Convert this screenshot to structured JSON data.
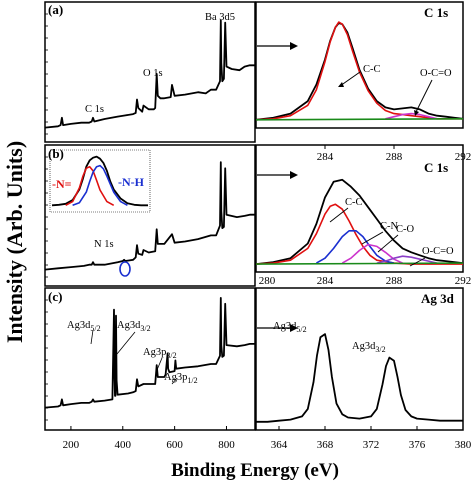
{
  "figure": {
    "ylabel": "Intensity (Arb. Units)",
    "xlabel": "Binding Energy (eV)"
  },
  "chart_data": [
    {
      "id": "a-survey",
      "panel_label": "(a)",
      "type": "line",
      "xlim": [
        100,
        910
      ],
      "ylim": [
        0,
        1
      ],
      "annotations": [
        {
          "text": "Ba 3d5",
          "x": 780,
          "y": 0.93
        },
        {
          "text": "O 1s",
          "x": 531,
          "y": 0.45
        },
        {
          "text": "C 1s",
          "x": 285,
          "y": 0.1
        }
      ],
      "series": [
        {
          "x": [
            100,
            150,
            160,
            165,
            170,
            200,
            240,
            270,
            280,
            285,
            290,
            330,
            380,
            410,
            440,
            450,
            455,
            460,
            475,
            480,
            500,
            520,
            525,
            531,
            535,
            545,
            560,
            585,
            590,
            600,
            640,
            690,
            720,
            740,
            760,
            775,
            778,
            780,
            784,
            790,
            795,
            800,
            820,
            850,
            870,
            890,
            910
          ],
          "y": [
            0.02,
            0.03,
            0.04,
            0.1,
            0.04,
            0.05,
            0.06,
            0.06,
            0.07,
            0.1,
            0.07,
            0.09,
            0.11,
            0.12,
            0.13,
            0.14,
            0.25,
            0.18,
            0.15,
            0.2,
            0.17,
            0.17,
            0.18,
            0.46,
            0.28,
            0.26,
            0.26,
            0.27,
            0.37,
            0.28,
            0.29,
            0.31,
            0.3,
            0.33,
            0.33,
            0.4,
            0.9,
            0.55,
            0.4,
            0.42,
            0.88,
            0.52,
            0.5,
            0.49,
            0.52,
            0.53,
            0.53
          ]
        }
      ]
    },
    {
      "id": "a-c1s",
      "panel_label": "C 1s",
      "type": "line",
      "xlim": [
        280,
        292
      ],
      "ylim": [
        0,
        1
      ],
      "series": [
        {
          "name": "data",
          "color": "#000000",
          "x": [
            280,
            281,
            282,
            283,
            283.5,
            284,
            284.3,
            284.6,
            284.8,
            285,
            285.3,
            285.6,
            286,
            286.5,
            287,
            287.5,
            288,
            288.5,
            289,
            289.5,
            290,
            290.5,
            291,
            291.5,
            292
          ],
          "y": [
            0.04,
            0.06,
            0.1,
            0.22,
            0.38,
            0.62,
            0.8,
            0.93,
            0.97,
            0.96,
            0.88,
            0.73,
            0.52,
            0.34,
            0.22,
            0.16,
            0.14,
            0.15,
            0.16,
            0.14,
            0.1,
            0.08,
            0.07,
            0.06,
            0.05
          ]
        },
        {
          "name": "fit",
          "color": "#e01010",
          "x": [
            280,
            281,
            282,
            283,
            283.5,
            284,
            284.3,
            284.6,
            284.8,
            285,
            285.3,
            285.6,
            286,
            286.5,
            287,
            287.5,
            288,
            288.5,
            289,
            289.5,
            290,
            290.5,
            291,
            291.5,
            292
          ],
          "y": [
            0.04,
            0.05,
            0.08,
            0.18,
            0.33,
            0.6,
            0.79,
            0.93,
            0.98,
            0.96,
            0.86,
            0.7,
            0.5,
            0.32,
            0.2,
            0.13,
            0.1,
            0.09,
            0.08,
            0.07,
            0.06,
            0.05,
            0.05,
            0.05,
            0.05
          ]
        },
        {
          "name": "peak2",
          "color": "#cc33cc",
          "x": [
            287.5,
            288,
            288.5,
            289,
            289.5,
            290,
            290.5
          ],
          "y": [
            0.05,
            0.07,
            0.09,
            0.1,
            0.09,
            0.07,
            0.05
          ]
        },
        {
          "name": "baseline",
          "color": "#1a8a1a",
          "x": [
            280,
            292
          ],
          "y": [
            0.04,
            0.05
          ]
        }
      ],
      "annotations": [
        {
          "text": "C-C",
          "x": 286.1,
          "y": 0.62
        },
        {
          "text": "O-C=O",
          "x": 289.7,
          "y": 0.42
        }
      ]
    },
    {
      "id": "b-survey",
      "panel_label": "(b)",
      "type": "line",
      "xlim": [
        100,
        910
      ],
      "ylim": [
        0,
        1
      ],
      "annotations": [
        {
          "text": "N 1s",
          "x": 395,
          "y": 0.24
        }
      ],
      "series": [
        {
          "x": [
            100,
            150,
            200,
            250,
            270,
            280,
            285,
            290,
            330,
            380,
            400,
            405,
            410,
            440,
            450,
            455,
            460,
            475,
            480,
            500,
            525,
            531,
            535,
            560,
            590,
            600,
            640,
            690,
            740,
            760,
            775,
            778,
            780,
            784,
            790,
            795,
            800,
            840,
            870,
            890,
            910
          ],
          "y": [
            0.02,
            0.03,
            0.04,
            0.05,
            0.06,
            0.06,
            0.08,
            0.06,
            0.06,
            0.08,
            0.09,
            0.1,
            0.09,
            0.1,
            0.12,
            0.22,
            0.15,
            0.14,
            0.18,
            0.16,
            0.17,
            0.35,
            0.23,
            0.23,
            0.31,
            0.24,
            0.25,
            0.27,
            0.3,
            0.3,
            0.38,
            0.9,
            0.5,
            0.36,
            0.37,
            0.85,
            0.47,
            0.45,
            0.46,
            0.47,
            0.47
          ]
        }
      ]
    },
    {
      "id": "b-n1s-inset",
      "type": "line",
      "labels": [
        {
          "text": "-N=",
          "color": "#e01010"
        },
        {
          "text": "-N-H",
          "color": "#1a2fd0"
        }
      ],
      "xlim": [
        393,
        407
      ],
      "ylim": [
        0,
        1
      ],
      "series": [
        {
          "name": "data",
          "color": "#000000",
          "x": [
            393,
            394,
            395,
            396,
            397,
            397.5,
            398,
            398.5,
            399,
            399.5,
            400,
            400.5,
            401,
            401.5,
            402,
            403,
            404,
            405,
            406,
            407
          ],
          "y": [
            0.05,
            0.06,
            0.08,
            0.15,
            0.35,
            0.55,
            0.78,
            0.9,
            0.95,
            0.97,
            0.93,
            0.85,
            0.7,
            0.5,
            0.35,
            0.18,
            0.09,
            0.06,
            0.05,
            0.05
          ]
        },
        {
          "name": "-N=",
          "color": "#e01010",
          "x": [
            395,
            396,
            397,
            397.5,
            398,
            398.5,
            399,
            399.5,
            400,
            401,
            402
          ],
          "y": [
            0.05,
            0.12,
            0.38,
            0.6,
            0.75,
            0.78,
            0.7,
            0.52,
            0.34,
            0.12,
            0.05
          ]
        },
        {
          "name": "-N-H",
          "color": "#1a2fd0",
          "x": [
            396,
            397,
            398,
            398.5,
            399,
            399.5,
            400,
            400.5,
            401,
            401.5,
            402,
            403,
            404
          ],
          "y": [
            0.05,
            0.1,
            0.3,
            0.5,
            0.68,
            0.78,
            0.8,
            0.74,
            0.6,
            0.45,
            0.3,
            0.12,
            0.05
          ]
        }
      ]
    },
    {
      "id": "b-c1s",
      "panel_label": "C 1s",
      "type": "line",
      "xlim": [
        280,
        292
      ],
      "ylim": [
        0,
        1
      ],
      "x_ticks": [
        284,
        288,
        292
      ],
      "series": [
        {
          "name": "data",
          "color": "#000000",
          "x": [
            280,
            281,
            282,
            283,
            283.5,
            284,
            284.5,
            285,
            285.5,
            286,
            286.5,
            287,
            287.5,
            288,
            288.5,
            289,
            289.5,
            290,
            290.5,
            291,
            291.5,
            292
          ],
          "y": [
            0.04,
            0.06,
            0.1,
            0.25,
            0.45,
            0.72,
            0.88,
            0.9,
            0.83,
            0.74,
            0.62,
            0.5,
            0.38,
            0.28,
            0.2,
            0.16,
            0.13,
            0.1,
            0.08,
            0.07,
            0.06,
            0.05
          ]
        },
        {
          "name": "fit",
          "color": "#e01010",
          "x": [
            280,
            281,
            282,
            283,
            283.5,
            284,
            284.3,
            284.6,
            285,
            285.4,
            285.8,
            286.2,
            286.6,
            287,
            288,
            289,
            290,
            291,
            292
          ],
          "y": [
            0.04,
            0.05,
            0.08,
            0.2,
            0.35,
            0.55,
            0.63,
            0.65,
            0.6,
            0.48,
            0.34,
            0.22,
            0.13,
            0.08,
            0.05,
            0.04,
            0.04,
            0.04,
            0.04
          ]
        },
        {
          "name": "C-N",
          "color": "#1a2fd0",
          "x": [
            283.5,
            284,
            284.5,
            285,
            285.4,
            285.8,
            286.2,
            286.6,
            287,
            287.5,
            288
          ],
          "y": [
            0.05,
            0.1,
            0.2,
            0.32,
            0.38,
            0.38,
            0.32,
            0.22,
            0.13,
            0.07,
            0.05
          ]
        },
        {
          "name": "C-O",
          "color": "#cc33cc",
          "x": [
            285,
            285.5,
            286,
            286.5,
            287,
            287.5,
            288,
            288.5
          ],
          "y": [
            0.05,
            0.1,
            0.18,
            0.24,
            0.22,
            0.16,
            0.09,
            0.05
          ]
        },
        {
          "name": "O-C=O",
          "color": "#8a3fc7",
          "x": [
            287,
            287.5,
            288,
            288.5,
            289,
            289.5,
            290,
            290.5
          ],
          "y": [
            0.05,
            0.07,
            0.1,
            0.12,
            0.11,
            0.09,
            0.07,
            0.05
          ]
        },
        {
          "name": "baseline",
          "color": "#1a8a1a",
          "x": [
            280,
            292
          ],
          "y": [
            0.04,
            0.05
          ]
        }
      ],
      "annotations": [
        {
          "text": "C-C",
          "x": 285.8,
          "y": 1.2
        },
        {
          "text": "C-N",
          "x": 286.8,
          "y": 0.9
        },
        {
          "text": "C-O",
          "x": 288.3,
          "y": 0.68
        },
        {
          "text": "O-C=O",
          "x": 289.8,
          "y": 0.48
        }
      ]
    },
    {
      "id": "c-survey",
      "panel_label": "(c)",
      "type": "line",
      "xlim": [
        100,
        910
      ],
      "ylim": [
        0,
        1
      ],
      "x_ticks": [
        200,
        400,
        600,
        800
      ],
      "annotations": [
        {
          "text": "Ag3d",
          "sub": "5/2"
        },
        {
          "text": "Ag3d",
          "sub": "3/2"
        },
        {
          "text": "Ag3p",
          "sub": "3/2"
        },
        {
          "text": "Ag3p",
          "sub": "1/2"
        }
      ],
      "series": [
        {
          "x": [
            100,
            150,
            160,
            165,
            170,
            200,
            240,
            270,
            280,
            285,
            290,
            330,
            360,
            366,
            368,
            370,
            372,
            374,
            376,
            380,
            420,
            440,
            450,
            455,
            460,
            480,
            500,
            525,
            531,
            535,
            560,
            565,
            573,
            575,
            580,
            600,
            603,
            606,
            640,
            690,
            740,
            760,
            775,
            778,
            780,
            784,
            790,
            795,
            800,
            840,
            870,
            890,
            910
          ],
          "y": [
            0.02,
            0.03,
            0.04,
            0.09,
            0.04,
            0.05,
            0.06,
            0.06,
            0.07,
            0.09,
            0.07,
            0.08,
            0.09,
            0.85,
            0.3,
            0.12,
            0.12,
            0.8,
            0.25,
            0.13,
            0.14,
            0.15,
            0.16,
            0.26,
            0.2,
            0.22,
            0.22,
            0.22,
            0.38,
            0.28,
            0.28,
            0.3,
            0.48,
            0.35,
            0.32,
            0.33,
            0.42,
            0.35,
            0.36,
            0.37,
            0.39,
            0.39,
            0.46,
            0.95,
            0.55,
            0.45,
            0.46,
            0.9,
            0.55,
            0.54,
            0.55,
            0.56,
            0.56
          ]
        }
      ]
    },
    {
      "id": "c-ag3d",
      "panel_label": "Ag 3d",
      "type": "line",
      "xlim": [
        362,
        380
      ],
      "ylim": [
        0,
        1
      ],
      "x_ticks": [
        364,
        368,
        372,
        376,
        380
      ],
      "annotations": [
        {
          "text": "Ag3d",
          "sub": "5/2",
          "x": 368,
          "y": 0.95
        },
        {
          "text": "Ag3d",
          "sub": "3/2",
          "x": 374,
          "y": 0.75
        }
      ],
      "series": [
        {
          "x": [
            362,
            363,
            364,
            365,
            366,
            366.5,
            367,
            367.3,
            367.6,
            368,
            368.3,
            368.6,
            369,
            369.5,
            370,
            371,
            372,
            372.5,
            373,
            373.3,
            373.6,
            374,
            374.3,
            374.6,
            375,
            375.5,
            376,
            377,
            378,
            379,
            380
          ],
          "y": [
            0.03,
            0.03,
            0.04,
            0.05,
            0.08,
            0.15,
            0.4,
            0.65,
            0.82,
            0.85,
            0.7,
            0.45,
            0.2,
            0.1,
            0.07,
            0.06,
            0.08,
            0.15,
            0.38,
            0.55,
            0.63,
            0.6,
            0.45,
            0.28,
            0.14,
            0.08,
            0.06,
            0.05,
            0.04,
            0.04,
            0.04
          ]
        }
      ]
    }
  ]
}
